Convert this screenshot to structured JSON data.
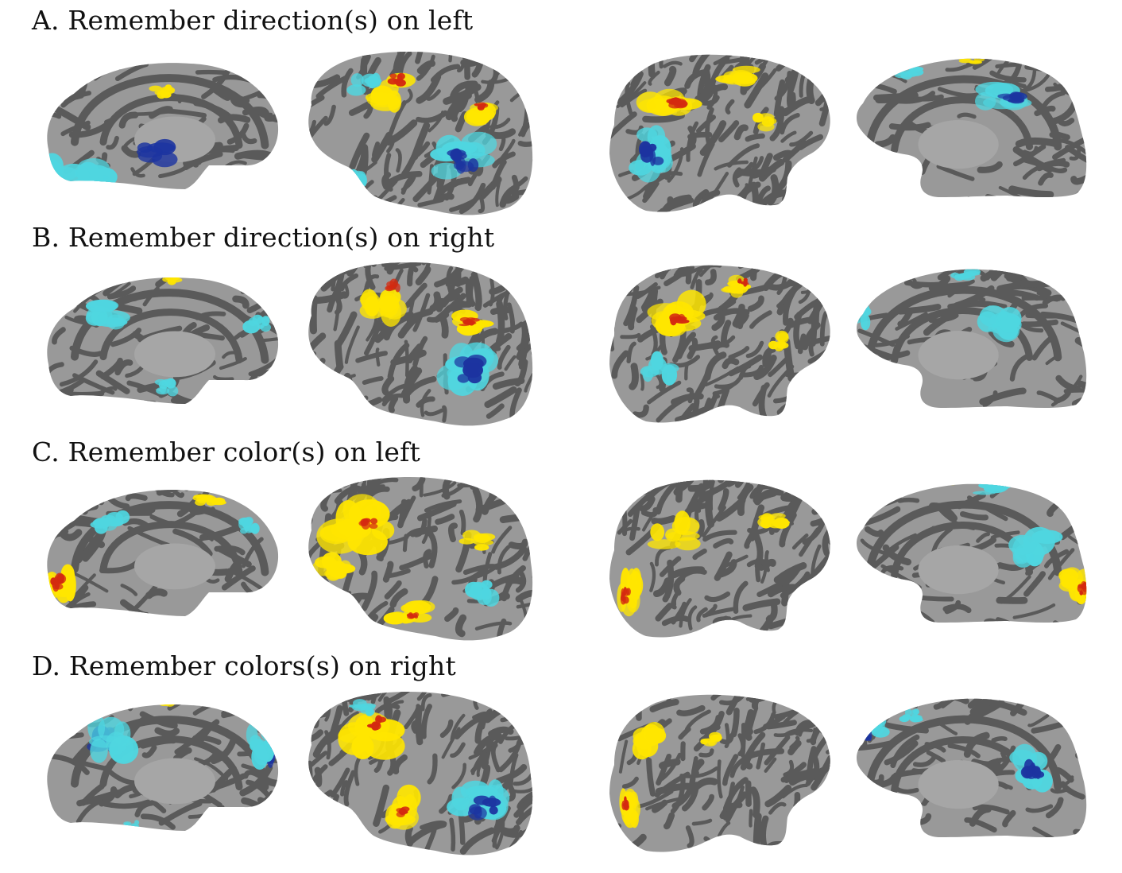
{
  "rows": [
    {
      "label": "A. Remember direction(s) on left"
    },
    {
      "label": "B. Remember direction(s) on right"
    },
    {
      "label": "C. Remember color(s) on left"
    },
    {
      "label": "D. Remember colors(s) on right"
    }
  ],
  "colors": {
    "background": "#ffffff",
    "cortex_gyri": "#999999",
    "cortex_sulci": "#5a5a5a",
    "activation_warm": [
      "#ffe600",
      "#f2a000",
      "#d42a10"
    ],
    "activation_cool": [
      "#4fd6e0",
      "#1f9cc6",
      "#1c34a0"
    ]
  },
  "panel_views": [
    "left-medial",
    "left-lateral",
    "right-lateral",
    "right-medial"
  ]
}
